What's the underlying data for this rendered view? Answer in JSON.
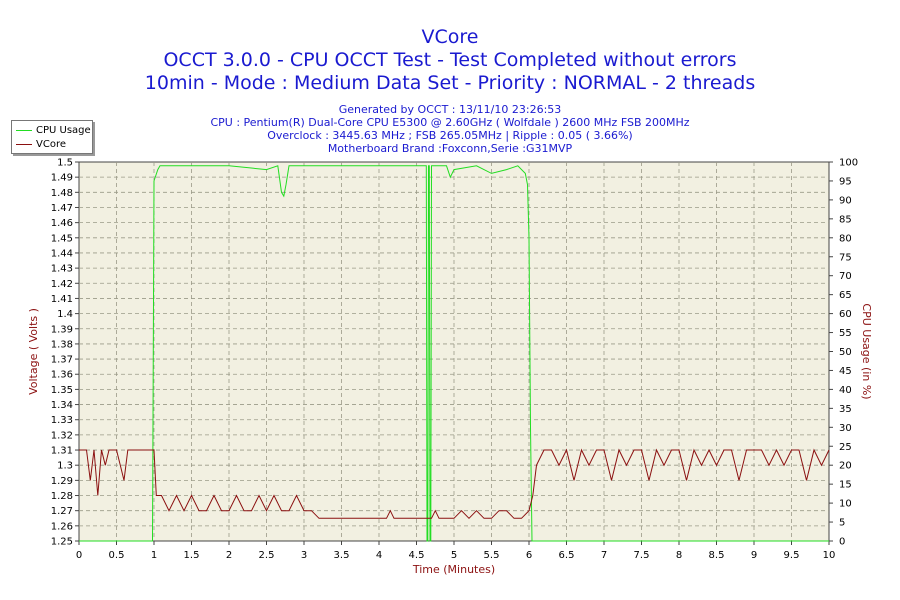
{
  "title": "VCore",
  "subtitle1": "OCCT 3.0.0 - CPU OCCT Test - Test Completed without errors",
  "subtitle2": "10min - Mode : Medium Data Set - Priority : NORMAL - 2 threads",
  "info": [
    "Generated by OCCT : 13/11/10 23:26:53",
    "CPU : Pentium(R) Dual-Core CPU E5300 @ 2.60GHz ( Wolfdale ) 2600 MHz FSB 200MHz",
    "Overclock : 3445.63 MHz ; FSB 265.05MHz | Ripple : 0.05 ( 3.66%)",
    "Motherboard Brand :Foxconn,Serie :G31MVP"
  ],
  "colors": {
    "cpu": "#22dd22",
    "vcore": "#8b1010",
    "title": "#1a1ad0",
    "axis_label": "#8b1010",
    "plot_bg": "#f2f0e1"
  },
  "chart_data": {
    "type": "line",
    "title": "VCore",
    "xlabel": "Time (Minutes)",
    "ylabel_left": "Voltage ( Volts )",
    "ylabel_right": "CPU Usage (in %)",
    "xlim": [
      0,
      10
    ],
    "ylim_left": [
      1.25,
      1.5
    ],
    "ylim_right": [
      0,
      100
    ],
    "x_ticks": [
      "0",
      "0.5",
      "1",
      "1.5",
      "2",
      "2.5",
      "3",
      "3.5",
      "4",
      "4.5",
      "5",
      "5.5",
      "6",
      "6.5",
      "7",
      "7.5",
      "8",
      "8.5",
      "9",
      "9.5",
      "10"
    ],
    "y_left_ticks": [
      "1.25",
      "1.26",
      "1.27",
      "1.28",
      "1.29",
      "1.3",
      "1.31",
      "1.32",
      "1.33",
      "1.34",
      "1.35",
      "1.36",
      "1.37",
      "1.38",
      "1.39",
      "1.4",
      "1.41",
      "1.42",
      "1.43",
      "1.44",
      "1.45",
      "1.46",
      "1.47",
      "1.48",
      "1.49",
      "1.5"
    ],
    "y_right_ticks": [
      "0",
      "5",
      "10",
      "15",
      "20",
      "25",
      "30",
      "35",
      "40",
      "45",
      "50",
      "55",
      "60",
      "65",
      "70",
      "75",
      "80",
      "85",
      "90",
      "95",
      "100"
    ],
    "grid": true,
    "legend": "top-left",
    "series": [
      {
        "name": "CPU Usage",
        "axis": "right",
        "x": [
          0,
          0.98,
          1.0,
          1.05,
          1.08,
          1.5,
          2.0,
          2.5,
          2.65,
          2.7,
          2.73,
          2.76,
          2.8,
          3.0,
          3.5,
          4.0,
          4.5,
          4.62,
          4.63,
          4.64,
          4.65,
          4.66,
          4.67,
          4.68,
          4.69,
          4.7,
          4.71,
          4.72,
          4.8,
          4.9,
          4.95,
          5.0,
          5.3,
          5.5,
          5.7,
          5.85,
          5.95,
          5.98,
          6.0,
          6.02,
          6.04,
          6.06,
          7,
          8,
          9,
          10
        ],
        "y": [
          0,
          0,
          95,
          98,
          99,
          99,
          99,
          98,
          99,
          92,
          91,
          94,
          99,
          99,
          99,
          99,
          99,
          99,
          99,
          0,
          0,
          99,
          99,
          0,
          0,
          99,
          99,
          99,
          99,
          99,
          96,
          98,
          99,
          97,
          98,
          99,
          97,
          94,
          80,
          30,
          0,
          0,
          0,
          0,
          0,
          0
        ]
      },
      {
        "name": "VCore",
        "axis": "left",
        "x": [
          0,
          0.1,
          0.15,
          0.2,
          0.25,
          0.3,
          0.35,
          0.4,
          0.45,
          0.5,
          0.55,
          0.6,
          0.65,
          0.7,
          0.75,
          0.8,
          0.85,
          0.9,
          0.95,
          1.0,
          1.03,
          1.1,
          1.2,
          1.3,
          1.4,
          1.5,
          1.6,
          1.7,
          1.8,
          1.9,
          2.0,
          2.1,
          2.2,
          2.3,
          2.4,
          2.5,
          2.6,
          2.7,
          2.8,
          2.9,
          3.0,
          3.1,
          3.2,
          3.3,
          3.5,
          3.8,
          4.0,
          4.1,
          4.15,
          4.2,
          4.5,
          4.7,
          4.75,
          4.8,
          5.0,
          5.1,
          5.2,
          5.3,
          5.4,
          5.5,
          5.6,
          5.7,
          5.8,
          5.9,
          6.0,
          6.05,
          6.1,
          6.2,
          6.3,
          6.4,
          6.5,
          6.6,
          6.7,
          6.8,
          6.9,
          7.0,
          7.1,
          7.2,
          7.3,
          7.4,
          7.5,
          7.6,
          7.7,
          7.8,
          7.9,
          8.0,
          8.1,
          8.2,
          8.3,
          8.4,
          8.5,
          8.6,
          8.7,
          8.8,
          8.9,
          9.0,
          9.1,
          9.2,
          9.3,
          9.4,
          9.5,
          9.6,
          9.7,
          9.8,
          9.9,
          10
        ],
        "y": [
          1.31,
          1.31,
          1.29,
          1.31,
          1.28,
          1.31,
          1.3,
          1.31,
          1.31,
          1.31,
          1.3,
          1.29,
          1.31,
          1.31,
          1.31,
          1.31,
          1.31,
          1.31,
          1.31,
          1.31,
          1.28,
          1.28,
          1.27,
          1.28,
          1.27,
          1.28,
          1.27,
          1.27,
          1.28,
          1.27,
          1.27,
          1.28,
          1.27,
          1.27,
          1.28,
          1.27,
          1.28,
          1.27,
          1.27,
          1.28,
          1.27,
          1.27,
          1.265,
          1.265,
          1.265,
          1.265,
          1.265,
          1.265,
          1.27,
          1.265,
          1.265,
          1.265,
          1.27,
          1.265,
          1.265,
          1.27,
          1.265,
          1.27,
          1.265,
          1.265,
          1.27,
          1.27,
          1.265,
          1.265,
          1.27,
          1.28,
          1.3,
          1.31,
          1.31,
          1.3,
          1.31,
          1.29,
          1.31,
          1.3,
          1.31,
          1.31,
          1.29,
          1.31,
          1.3,
          1.31,
          1.31,
          1.29,
          1.31,
          1.3,
          1.31,
          1.31,
          1.29,
          1.31,
          1.3,
          1.31,
          1.3,
          1.31,
          1.31,
          1.29,
          1.31,
          1.31,
          1.31,
          1.3,
          1.31,
          1.3,
          1.31,
          1.31,
          1.29,
          1.31,
          1.3,
          1.31
        ]
      }
    ]
  }
}
